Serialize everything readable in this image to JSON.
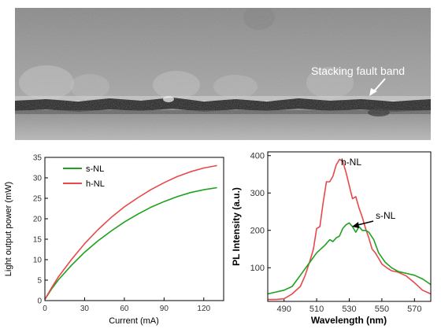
{
  "micrograph": {
    "annotation": "Stacking fault band"
  },
  "chart_data": [
    {
      "type": "line",
      "xlabel": "Current (mA)",
      "ylabel": "Light output power (mW)",
      "xlim": [
        0,
        135
      ],
      "ylim": [
        0,
        35
      ],
      "xticks": [
        0,
        30,
        60,
        90,
        120
      ],
      "yticks": [
        0,
        5,
        10,
        15,
        20,
        25,
        30,
        35
      ],
      "legend": "top-left",
      "series": [
        {
          "name": "s-NL",
          "color": "#1fa01f",
          "x": [
            0,
            5,
            10,
            20,
            30,
            40,
            50,
            60,
            70,
            80,
            90,
            100,
            110,
            120,
            130
          ],
          "y": [
            0.3,
            2.8,
            5.0,
            8.6,
            11.8,
            14.6,
            17.0,
            19.2,
            21.1,
            22.8,
            24.2,
            25.4,
            26.4,
            27.1,
            27.6
          ]
        },
        {
          "name": "h-NL",
          "color": "#e8484a",
          "x": [
            0,
            5,
            10,
            20,
            30,
            40,
            50,
            60,
            70,
            80,
            90,
            100,
            110,
            120,
            130
          ],
          "y": [
            0.3,
            3.1,
            5.7,
            10.0,
            13.9,
            17.3,
            20.3,
            22.9,
            25.1,
            27.1,
            28.8,
            30.3,
            31.5,
            32.4,
            33.0
          ]
        }
      ]
    },
    {
      "type": "line",
      "xlabel": "Wavelength (nm)",
      "ylabel": "PL Intensity (a.u.)",
      "xlim": [
        480,
        580
      ],
      "ylim": [
        10,
        410
      ],
      "xticks": [
        490,
        510,
        530,
        550,
        570
      ],
      "yticks": [
        100,
        200,
        300,
        400
      ],
      "annotations": [
        "h-NL",
        "s-NL"
      ],
      "series": [
        {
          "color": "#e8484a",
          "x": [
            480,
            485,
            490,
            495,
            500,
            503,
            506,
            508,
            510,
            512,
            514,
            516,
            518,
            520,
            522,
            524,
            526,
            528,
            530,
            532,
            534,
            536,
            538,
            540,
            542,
            544,
            546,
            548,
            550,
            553,
            556,
            560,
            565,
            570,
            575,
            580
          ],
          "y": [
            15,
            15,
            17,
            30,
            50,
            80,
            120,
            150,
            205,
            210,
            275,
            330,
            330,
            345,
            375,
            390,
            385,
            355,
            320,
            285,
            290,
            260,
            235,
            205,
            180,
            150,
            140,
            125,
            110,
            100,
            92,
            88,
            78,
            60,
            40,
            30
          ]
        },
        {
          "color": "#1fa01f",
          "x": [
            480,
            485,
            490,
            495,
            500,
            505,
            510,
            515,
            518,
            520,
            522,
            524,
            526,
            528,
            530,
            532,
            534,
            536,
            538,
            540,
            542,
            545,
            548,
            552,
            556,
            560,
            565,
            570,
            575,
            580
          ],
          "y": [
            30,
            35,
            40,
            50,
            80,
            110,
            140,
            160,
            175,
            170,
            180,
            185,
            205,
            215,
            220,
            210,
            195,
            210,
            200,
            200,
            195,
            175,
            140,
            115,
            100,
            90,
            85,
            80,
            70,
            55
          ]
        }
      ]
    }
  ]
}
